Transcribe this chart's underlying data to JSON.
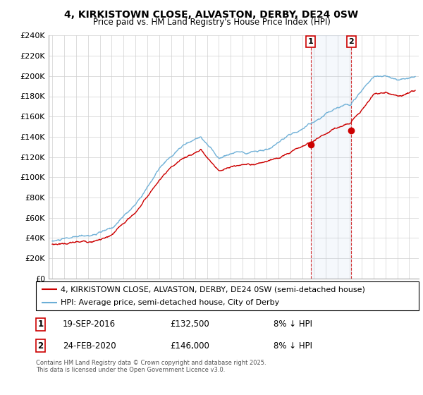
{
  "title": "4, KIRKISTOWN CLOSE, ALVASTON, DERBY, DE24 0SW",
  "subtitle": "Price paid vs. HM Land Registry's House Price Index (HPI)",
  "ylabel_ticks": [
    "£0",
    "£20K",
    "£40K",
    "£60K",
    "£80K",
    "£100K",
    "£120K",
    "£140K",
    "£160K",
    "£180K",
    "£200K",
    "£220K",
    "£240K"
  ],
  "ylim": [
    0,
    240000
  ],
  "ytick_vals": [
    0,
    20000,
    40000,
    60000,
    80000,
    100000,
    120000,
    140000,
    160000,
    180000,
    200000,
    220000,
    240000
  ],
  "hpi_color": "#6baed6",
  "price_color": "#cc0000",
  "vline_color": "#cc0000",
  "background_color": "#ffffff",
  "grid_color": "#d0d0d0",
  "legend_label_price": "4, KIRKISTOWN CLOSE, ALVASTON, DERBY, DE24 0SW (semi-detached house)",
  "legend_label_hpi": "HPI: Average price, semi-detached house, City of Derby",
  "transaction1_date": "19-SEP-2016",
  "transaction1_price": 132500,
  "transaction1_label": "£132,500",
  "transaction1_hpi_diff": "8% ↓ HPI",
  "transaction1_year": 2016.72,
  "transaction2_date": "24-FEB-2020",
  "transaction2_price": 146000,
  "transaction2_label": "£146,000",
  "transaction2_hpi_diff": "8% ↓ HPI",
  "transaction2_year": 2020.13,
  "footnote": "Contains HM Land Registry data © Crown copyright and database right 2025.\nThis data is licensed under the Open Government Licence v3.0."
}
